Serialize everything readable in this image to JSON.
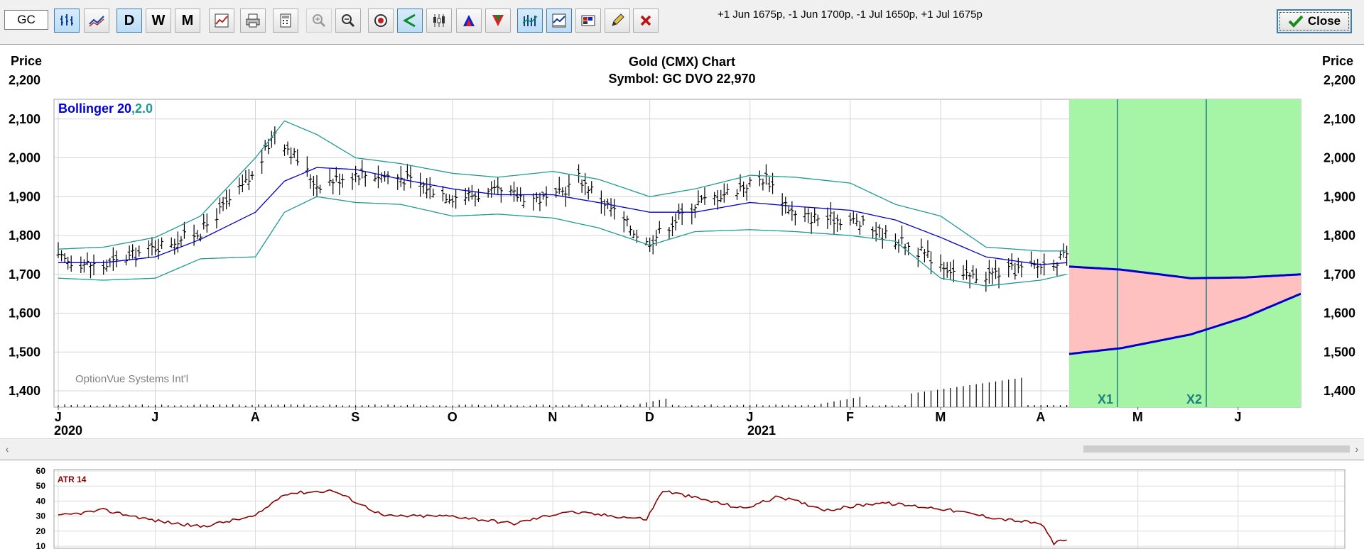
{
  "toolbar": {
    "symbol_value": "GC",
    "spread_text": "+1 Jun 1675p, -1 Jun 1700p, -1 Jul 1650p, +1 Jul 1675p",
    "daily_label": "D",
    "weekly_label": "W",
    "monthly_label": "M",
    "close_label": "Close"
  },
  "chart": {
    "title": "Gold (CMX) Chart",
    "subtitle": "Symbol: GC  DVO 22,970",
    "left_axis_label": "Price",
    "right_axis_label": "Price",
    "indicator_name": "Bollinger 20",
    "indicator_param": ",2.0",
    "watermark": "OptionVue Systems Int'l",
    "marker_x1": "X1",
    "marker_x2": "X2",
    "colors": {
      "bollinger_mid": "#0000cc",
      "bollinger_band": "#1e9a96",
      "bars": "#000000",
      "profit_zone": "#a6f5a6",
      "loss_zone": "#ffc0c0",
      "atr": "#8b0000"
    }
  },
  "chart_data": [
    {
      "type": "ohlc",
      "title": "Gold (CMX) Chart",
      "ylabel": "Price",
      "ylim": [
        1400,
        2200
      ],
      "yticks": [
        "2,200",
        "2,100",
        "2,000",
        "1,900",
        "1,800",
        "1,700",
        "1,600",
        "1,500",
        "1,400"
      ],
      "x_month_labels": [
        "J",
        "J",
        "A",
        "S",
        "O",
        "N",
        "D",
        "J",
        "F",
        "M",
        "A",
        "M",
        "J"
      ],
      "x_year_labels": [
        "2020",
        "2021"
      ],
      "series": [
        {
          "name": "Bollinger 20",
          "dates": [
            "2020-06-01",
            "2020-06-15",
            "2020-07-01",
            "2020-07-15",
            "2020-08-01",
            "2020-08-10",
            "2020-08-20",
            "2020-09-01",
            "2020-09-15",
            "2020-10-01",
            "2020-10-15",
            "2020-11-01",
            "2020-11-15",
            "2020-12-01",
            "2020-12-15",
            "2021-01-01",
            "2021-01-15",
            "2021-02-01",
            "2021-02-15",
            "2021-03-01",
            "2021-03-15",
            "2021-04-01",
            "2021-04-09"
          ],
          "middle": [
            1730,
            1730,
            1745,
            1790,
            1860,
            1940,
            1975,
            1970,
            1945,
            1920,
            1905,
            1905,
            1885,
            1860,
            1860,
            1885,
            1875,
            1865,
            1840,
            1795,
            1745,
            1725,
            1730
          ],
          "upper": [
            1765,
            1770,
            1795,
            1850,
            2000,
            2095,
            2060,
            2000,
            1985,
            1960,
            1950,
            1965,
            1945,
            1900,
            1920,
            1955,
            1950,
            1935,
            1880,
            1850,
            1770,
            1760,
            1760
          ],
          "lower": [
            1690,
            1685,
            1690,
            1740,
            1745,
            1860,
            1900,
            1885,
            1880,
            1850,
            1855,
            1845,
            1820,
            1775,
            1810,
            1815,
            1810,
            1800,
            1785,
            1690,
            1670,
            1685,
            1700
          ]
        },
        {
          "name": "Price bars",
          "dates": [
            "2020-06-01",
            "2020-06-15",
            "2020-07-01",
            "2020-07-15",
            "2020-08-01",
            "2020-08-07",
            "2020-08-20",
            "2020-09-01",
            "2020-09-15",
            "2020-10-01",
            "2020-10-15",
            "2020-11-01",
            "2020-11-09",
            "2020-11-30",
            "2020-12-15",
            "2021-01-06",
            "2021-01-15",
            "2021-02-01",
            "2021-02-15",
            "2021-03-01",
            "2021-03-08",
            "2021-03-31",
            "2021-04-09"
          ],
          "close": [
            1740,
            1720,
            1770,
            1810,
            1960,
            2070,
            1930,
            1960,
            1950,
            1900,
            1910,
            1890,
            1950,
            1780,
            1880,
            1950,
            1850,
            1840,
            1790,
            1730,
            1690,
            1720,
            1745
          ]
        }
      ],
      "option_analysis": {
        "x_markers": [
          "X1",
          "X2"
        ],
        "dates": [
          "2021-04-12",
          "2021-05-01",
          "2021-05-26",
          "2021-06-15",
          "2021-07-05"
        ],
        "upper_curve": [
          1720,
          1712,
          1690,
          1692,
          1700
        ],
        "lower_curve": [
          1495,
          1510,
          1545,
          1590,
          1650
        ]
      }
    },
    {
      "type": "line",
      "title": "ATR 14",
      "ylim": [
        10,
        60
      ],
      "yticks": [
        "60",
        "50",
        "40",
        "30",
        "20",
        "10"
      ],
      "series": [
        {
          "name": "ATR 14",
          "dates": [
            "2020-06-01",
            "2020-06-15",
            "2020-07-01",
            "2020-07-15",
            "2020-08-01",
            "2020-08-10",
            "2020-08-25",
            "2020-09-10",
            "2020-10-01",
            "2020-10-20",
            "2020-11-05",
            "2020-11-30",
            "2020-12-05",
            "2020-12-30",
            "2021-01-10",
            "2021-01-25",
            "2021-02-10",
            "2021-03-01",
            "2021-03-20",
            "2021-04-01",
            "2021-04-05",
            "2021-04-09"
          ],
          "values": [
            30,
            34,
            27,
            23,
            30,
            45,
            47,
            30,
            30,
            25,
            33,
            28,
            47,
            35,
            43,
            34,
            39,
            35,
            28,
            25,
            12,
            14
          ]
        }
      ]
    }
  ]
}
